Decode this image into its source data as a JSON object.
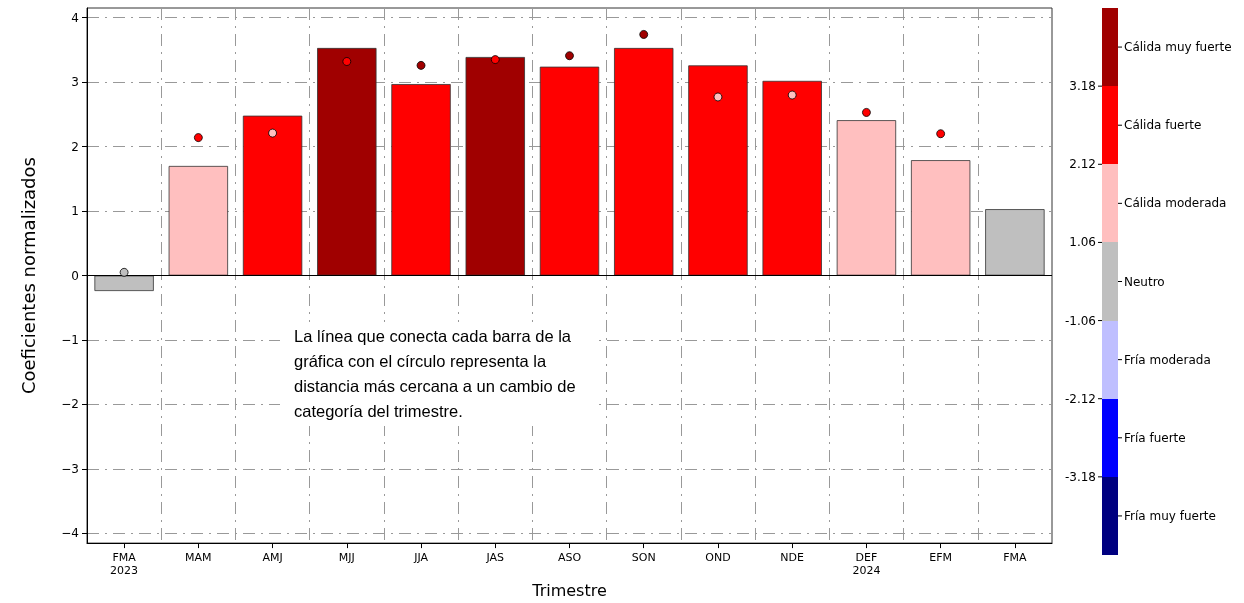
{
  "chart_data": [
    {
      "type": "bar",
      "xlabel": "Trimestre",
      "ylabel": "Coeficientes normalizados",
      "categories": [
        "FMA\n2023",
        "MAM",
        "AMJ",
        "MJJ",
        "JJA",
        "JAS",
        "ASO",
        "SON",
        "OND",
        "NDE",
        "DEF\n2024",
        "EFM",
        "FMA"
      ],
      "series": [
        {
          "type": "bar",
          "values": [
            -0.24,
            1.7,
            2.48,
            3.53,
            2.97,
            3.39,
            3.24,
            3.53,
            3.26,
            3.02,
            2.41,
            1.79,
            1.03
          ],
          "colors": [
            "#bfbfbf",
            "#ffbfbf",
            "#ff0000",
            "#a00000",
            "#ff0000",
            "#a00000",
            "#ff0000",
            "#ff0000",
            "#ff0000",
            "#ff0000",
            "#ffbfbf",
            "#ffbfbf",
            "#bfbfbf"
          ]
        },
        {
          "type": "scatter",
          "x": [
            "FMA\n2023",
            "MAM",
            "AMJ",
            "MJJ",
            "JJA",
            "JAS",
            "ASO",
            "SON",
            "OND",
            "NDE",
            "DEF\n2024",
            "EFM"
          ],
          "values": [
            0.05,
            2.14,
            2.21,
            3.32,
            3.26,
            3.35,
            3.41,
            3.74,
            2.77,
            2.8,
            2.53,
            2.2
          ],
          "colors": [
            "#bfbfbf",
            "#ff0000",
            "#ffbfbf",
            "#ff0000",
            "#a00000",
            "#ff0000",
            "#a00000",
            "#a00000",
            "#ffbfbf",
            "#ffbfbf",
            "#ff0000",
            "#ff0000"
          ]
        }
      ],
      "ylim": [
        -4.15,
        4.15
      ],
      "yticks": [
        {
          "value": -4,
          "label": "−4"
        },
        {
          "value": -3,
          "label": "−3"
        },
        {
          "value": -2,
          "label": "−2"
        },
        {
          "value": -1,
          "label": "−1"
        },
        0,
        1,
        2,
        3,
        4
      ],
      "grid": true,
      "marker": "circle",
      "ref_lines": [
        {
          "axis": "y",
          "value": 0,
          "color": "#000000",
          "line_style": "solid"
        }
      ],
      "annotations": [
        "La línea que conecta cada barra de la gráfica con el círculo representa la distancia más cercana a un cambio de categoría del trimestre."
      ]
    },
    {
      "type": "other",
      "categories": [
        "Cálida muy fuerte",
        "Cálida fuerte",
        "Cálida moderada",
        "Neutro",
        "Fría moderada",
        "Fría fuerte",
        "Fría muy fuerte"
      ],
      "colors": [
        "#a00000",
        "#ff0000",
        "#ffbfbf",
        "#bfbfbf",
        "#bfbfff",
        "#0000ff",
        "#000080"
      ],
      "annotations": [
        "3.18",
        "2.12",
        "1.06",
        "-1.06",
        "-2.12",
        "-3.18"
      ]
    }
  ]
}
